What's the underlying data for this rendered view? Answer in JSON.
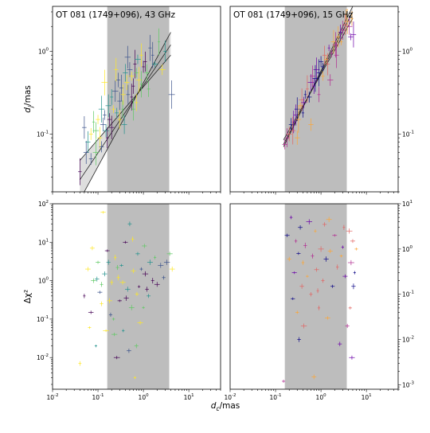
{
  "figure": {
    "xlabel": "d_c/mas",
    "ylabel_top": "d_j/mas",
    "ylabel_bottom": "Δχ²"
  },
  "chart_data": [
    {
      "panel": "top-left",
      "type": "scatter",
      "title": "OT 081 (1749+096), 43 GHz",
      "xlabel": "",
      "ylabel": "d_j/mas",
      "xscale": "log",
      "yscale": "log",
      "xlim": [
        0.01,
        50
      ],
      "ylim": [
        0.02,
        3.5
      ],
      "xticks": [],
      "yticks": [
        "10^{-1}",
        "10^{0}"
      ],
      "shaded_region": [
        0.16,
        3.7
      ],
      "fit_lines": [
        {
          "x": [
            0.04,
            4.0
          ],
          "y": [
            0.016,
            1.7
          ]
        },
        {
          "x": [
            0.04,
            4.0
          ],
          "y": [
            0.028,
            1.2
          ]
        },
        {
          "x": [
            0.04,
            4.0
          ],
          "y": [
            0.048,
            0.9
          ]
        }
      ],
      "colormap": [
        "#440154",
        "#3b528b",
        "#21918c",
        "#5ec962",
        "#fde725"
      ],
      "points": [
        [
          0.04,
          0.035
        ],
        [
          0.05,
          0.12
        ],
        [
          0.055,
          0.06
        ],
        [
          0.06,
          0.08
        ],
        [
          0.07,
          0.1
        ],
        [
          0.08,
          0.14
        ],
        [
          0.09,
          0.11
        ],
        [
          0.1,
          0.15
        ],
        [
          0.11,
          0.09
        ],
        [
          0.12,
          0.2
        ],
        [
          0.13,
          0.13
        ],
        [
          0.14,
          0.17
        ],
        [
          0.15,
          0.11
        ],
        [
          0.17,
          0.22
        ],
        [
          0.18,
          0.15
        ],
        [
          0.2,
          0.28
        ],
        [
          0.22,
          0.2
        ],
        [
          0.24,
          0.33
        ],
        [
          0.26,
          0.18
        ],
        [
          0.28,
          0.45
        ],
        [
          0.3,
          0.25
        ],
        [
          0.33,
          0.36
        ],
        [
          0.36,
          0.3
        ],
        [
          0.4,
          0.55
        ],
        [
          0.43,
          0.42
        ],
        [
          0.46,
          0.3
        ],
        [
          0.5,
          0.6
        ],
        [
          0.55,
          0.5
        ],
        [
          0.6,
          0.38
        ],
        [
          0.65,
          0.7
        ],
        [
          0.7,
          0.55
        ],
        [
          0.75,
          0.8
        ],
        [
          0.8,
          0.45
        ],
        [
          0.9,
          0.9
        ],
        [
          1.0,
          0.65
        ],
        [
          1.1,
          0.75
        ],
        [
          1.2,
          0.55
        ],
        [
          1.4,
          1.1
        ],
        [
          1.6,
          0.9
        ],
        [
          1.8,
          0.7
        ],
        [
          2.2,
          1.3
        ],
        [
          2.6,
          0.6
        ],
        [
          3.0,
          1.0
        ],
        [
          0.12,
          0.07
        ],
        [
          0.2,
          0.12
        ],
        [
          0.35,
          0.2
        ],
        [
          0.55,
          0.28
        ],
        [
          0.9,
          0.4
        ],
        [
          0.14,
          0.42
        ],
        [
          0.25,
          0.6
        ],
        [
          0.45,
          0.85
        ],
        [
          0.07,
          0.05
        ],
        [
          0.3,
          0.15
        ],
        [
          0.6,
          0.2
        ],
        [
          1.3,
          0.35
        ],
        [
          4.2,
          0.3
        ],
        [
          0.09,
          0.06
        ],
        [
          0.16,
          0.09
        ],
        [
          0.38,
          0.13
        ],
        [
          0.7,
          0.24
        ]
      ]
    },
    {
      "panel": "top-right",
      "type": "scatter",
      "title": "OT 081 (1749+096), 15 GHz",
      "xlabel": "",
      "ylabel": "",
      "xscale": "log",
      "yscale": "log",
      "xlim": [
        0.01,
        50
      ],
      "ylim": [
        0.02,
        3.5
      ],
      "xticks": [],
      "yticks": [
        "10^{-1}",
        "10^{0}"
      ],
      "shaded_region": [
        0.16,
        3.7
      ],
      "fit_lines": [
        {
          "x": [
            0.15,
            5.0
          ],
          "y": [
            0.07,
            3.5
          ]
        },
        {
          "x": [
            0.15,
            5.0
          ],
          "y": [
            0.075,
            3.0
          ]
        },
        {
          "x": [
            0.15,
            5.0
          ],
          "y": [
            0.085,
            2.5
          ]
        }
      ],
      "colormap": [
        "#0d0887",
        "#6a00a8",
        "#b12a90",
        "#e16462",
        "#fca636"
      ],
      "points": [
        [
          0.16,
          0.075
        ],
        [
          0.18,
          0.09
        ],
        [
          0.2,
          0.1
        ],
        [
          0.22,
          0.13
        ],
        [
          0.25,
          0.14
        ],
        [
          0.28,
          0.17
        ],
        [
          0.3,
          0.2
        ],
        [
          0.32,
          0.15
        ],
        [
          0.35,
          0.22
        ],
        [
          0.38,
          0.26
        ],
        [
          0.4,
          0.18
        ],
        [
          0.45,
          0.3
        ],
        [
          0.5,
          0.35
        ],
        [
          0.55,
          0.28
        ],
        [
          0.6,
          0.42
        ],
        [
          0.65,
          0.5
        ],
        [
          0.7,
          0.38
        ],
        [
          0.8,
          0.6
        ],
        [
          0.9,
          0.55
        ],
        [
          1.0,
          0.75
        ],
        [
          1.1,
          0.65
        ],
        [
          1.2,
          0.9
        ],
        [
          1.3,
          0.8
        ],
        [
          1.5,
          1.1
        ],
        [
          1.7,
          0.95
        ],
        [
          1.9,
          1.3
        ],
        [
          2.1,
          1.2
        ],
        [
          2.4,
          1.5
        ],
        [
          2.7,
          1.7
        ],
        [
          3.0,
          1.8
        ],
        [
          3.4,
          2.1
        ],
        [
          3.8,
          2.3
        ],
        [
          4.2,
          2.0
        ],
        [
          4.8,
          2.5
        ],
        [
          5.2,
          1.6
        ],
        [
          0.24,
          0.11
        ],
        [
          0.42,
          0.24
        ],
        [
          0.75,
          0.47
        ],
        [
          1.4,
          0.7
        ],
        [
          2.2,
          0.9
        ],
        [
          0.6,
          0.13
        ],
        [
          0.9,
          0.3
        ],
        [
          1.6,
          0.45
        ],
        [
          0.3,
          0.09
        ],
        [
          1.1,
          0.5
        ],
        [
          2.8,
          1.3
        ],
        [
          4.5,
          1.5
        ],
        [
          3.6,
          2.8
        ]
      ]
    },
    {
      "panel": "bottom-left",
      "type": "scatter",
      "title": "",
      "xlabel": "d_c/mas",
      "ylabel": "Δχ²",
      "xscale": "log",
      "yscale": "log",
      "xlim": [
        0.01,
        50
      ],
      "ylim": [
        0.0015,
        100
      ],
      "xticks": [
        "10^{-2}",
        "10^{-1}",
        "10^{0}",
        "10^{1}"
      ],
      "yticks": [
        "10^{-2}",
        "10^{-1}",
        "10^{0}",
        "10^{1}",
        "10^{2}"
      ],
      "shaded_region": [
        0.16,
        3.7
      ],
      "fit_lines": [],
      "colormap": [
        "#440154",
        "#3b528b",
        "#21918c",
        "#5ec962",
        "#fde725"
      ],
      "points": [
        [
          0.04,
          0.007
        ],
        [
          0.05,
          0.4
        ],
        [
          0.06,
          2.0
        ],
        [
          0.07,
          0.15
        ],
        [
          0.075,
          7.0
        ],
        [
          0.08,
          1.0
        ],
        [
          0.09,
          0.02
        ],
        [
          0.1,
          3.0
        ],
        [
          0.11,
          0.5
        ],
        [
          0.12,
          0.8
        ],
        [
          0.13,
          60.0
        ],
        [
          0.14,
          1.5
        ],
        [
          0.15,
          0.05
        ],
        [
          0.17,
          3.0
        ],
        [
          0.18,
          0.3
        ],
        [
          0.2,
          0.9
        ],
        [
          0.22,
          0.1
        ],
        [
          0.24,
          4.0
        ],
        [
          0.26,
          0.01
        ],
        [
          0.28,
          1.2
        ],
        [
          0.3,
          0.3
        ],
        [
          0.33,
          2.5
        ],
        [
          0.36,
          0.05
        ],
        [
          0.4,
          10.0
        ],
        [
          0.45,
          0.6
        ],
        [
          0.5,
          30.0
        ],
        [
          0.55,
          0.2
        ],
        [
          0.6,
          1.8
        ],
        [
          0.65,
          0.003
        ],
        [
          0.7,
          0.02
        ],
        [
          0.75,
          5.0
        ],
        [
          0.8,
          0.7
        ],
        [
          0.9,
          2.0
        ],
        [
          1.0,
          0.2
        ],
        [
          1.1,
          1.5
        ],
        [
          1.2,
          0.6
        ],
        [
          1.4,
          3.0
        ],
        [
          1.6,
          1.0
        ],
        [
          1.8,
          4.0
        ],
        [
          2.0,
          0.8
        ],
        [
          2.4,
          2.5
        ],
        [
          2.8,
          1.2
        ],
        [
          3.3,
          3.0
        ],
        [
          3.8,
          5.0
        ],
        [
          4.3,
          2.0
        ],
        [
          0.12,
          0.25
        ],
        [
          0.23,
          0.04
        ],
        [
          0.42,
          0.35
        ],
        [
          0.85,
          0.08
        ],
        [
          0.065,
          0.06
        ],
        [
          0.16,
          6.0
        ],
        [
          0.35,
          0.9
        ],
        [
          0.58,
          12.0
        ],
        [
          1.3,
          0.4
        ],
        [
          0.095,
          1.1
        ],
        [
          0.19,
          0.13
        ],
        [
          0.27,
          2.2
        ],
        [
          0.48,
          0.015
        ],
        [
          0.72,
          0.45
        ],
        [
          1.05,
          8.0
        ]
      ]
    },
    {
      "panel": "bottom-right",
      "type": "scatter",
      "title": "",
      "xlabel": "",
      "ylabel": "",
      "xscale": "log",
      "yscale": "log",
      "xlim": [
        0.01,
        50
      ],
      "ylim": [
        0.0008,
        10
      ],
      "xticks": [
        "10^{-2}",
        "10^{-1}",
        "10^{0}",
        "10^{1}"
      ],
      "yticks": [
        "10^{-3}",
        "10^{-2}",
        "10^{-1}",
        "10^{0}",
        "10^{1}"
      ],
      "shaded_region": [
        0.16,
        3.7
      ],
      "fit_lines": [],
      "colormap": [
        "#0d0887",
        "#6a00a8",
        "#b12a90",
        "#e16462",
        "#fca636"
      ],
      "points": [
        [
          0.15,
          0.0012
        ],
        [
          0.18,
          2.0
        ],
        [
          0.2,
          0.6
        ],
        [
          0.22,
          5.0
        ],
        [
          0.24,
          0.08
        ],
        [
          0.26,
          0.3
        ],
        [
          0.28,
          1.5
        ],
        [
          0.3,
          0.04
        ],
        [
          0.32,
          0.8
        ],
        [
          0.35,
          3.0
        ],
        [
          0.38,
          0.15
        ],
        [
          0.4,
          0.5
        ],
        [
          0.42,
          0.02
        ],
        [
          0.45,
          1.2
        ],
        [
          0.5,
          0.25
        ],
        [
          0.55,
          4.0
        ],
        [
          0.6,
          0.1
        ],
        [
          0.65,
          0.7
        ],
        [
          0.7,
          0.0015
        ],
        [
          0.75,
          2.5
        ],
        [
          0.8,
          0.35
        ],
        [
          0.9,
          0.05
        ],
        [
          1.0,
          1.0
        ],
        [
          1.1,
          0.2
        ],
        [
          1.2,
          3.5
        ],
        [
          1.3,
          0.6
        ],
        [
          1.4,
          0.03
        ],
        [
          1.6,
          0.9
        ],
        [
          1.8,
          0.15
        ],
        [
          2.0,
          2.0
        ],
        [
          2.3,
          0.4
        ],
        [
          2.6,
          0.008
        ],
        [
          3.0,
          1.1
        ],
        [
          3.4,
          0.25
        ],
        [
          3.8,
          0.02
        ],
        [
          4.2,
          2.5
        ],
        [
          4.6,
          0.5
        ],
        [
          5.0,
          1.5
        ],
        [
          5.5,
          0.3
        ],
        [
          6.0,
          1.0
        ],
        [
          4.4,
          0.05
        ],
        [
          0.33,
          0.01
        ],
        [
          0.85,
          0.12
        ],
        [
          1.5,
          4.5
        ],
        [
          2.8,
          0.7
        ],
        [
          5.2,
          0.15
        ],
        [
          4.8,
          0.004
        ],
        [
          3.2,
          3.0
        ]
      ]
    }
  ]
}
